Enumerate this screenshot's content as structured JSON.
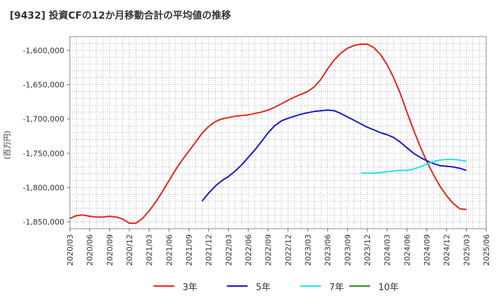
{
  "chart_data": {
    "type": "line",
    "title": "[9432]  投資CFの12か月移動合計の平均値の推移",
    "ylabel": "(百万円)",
    "xlabel": "",
    "ylim": [
      -1860000,
      -1580000
    ],
    "yticks": [
      -1600000,
      -1650000,
      -1700000,
      -1750000,
      -1800000,
      -1850000
    ],
    "ytick_labels": [
      "-1,600,000",
      "-1,650,000",
      "-1,700,000",
      "-1,750,000",
      "-1,800,000",
      "-1,850,000"
    ],
    "x_start": "2020-03",
    "x_end": "2025-06",
    "xtick_labels": [
      "2020/03",
      "2020/06",
      "2020/09",
      "2020/12",
      "2021/03",
      "2021/06",
      "2021/09",
      "2021/12",
      "2022/03",
      "2022/06",
      "2022/09",
      "2022/12",
      "2023/03",
      "2023/06",
      "2023/09",
      "2023/12",
      "2024/03",
      "2024/06",
      "2024/09",
      "2024/12",
      "2025/03",
      "2025/06"
    ],
    "grid": true,
    "legend_position": "bottom",
    "series": [
      {
        "name": "3年",
        "color": "#e8211c",
        "x": [
          "2020-03",
          "2020-04",
          "2020-05",
          "2020-06",
          "2020-07",
          "2020-08",
          "2020-09",
          "2020-10",
          "2020-11",
          "2020-12",
          "2021-01",
          "2021-02",
          "2021-03",
          "2021-04",
          "2021-05",
          "2021-06",
          "2021-07",
          "2021-08",
          "2021-09",
          "2021-10",
          "2021-11",
          "2021-12",
          "2022-01",
          "2022-02",
          "2022-03",
          "2022-04",
          "2022-05",
          "2022-06",
          "2022-07",
          "2022-08",
          "2022-09",
          "2022-10",
          "2022-11",
          "2022-12",
          "2023-01",
          "2023-02",
          "2023-03",
          "2023-04",
          "2023-05",
          "2023-06",
          "2023-07",
          "2023-08",
          "2023-09",
          "2023-10",
          "2023-11",
          "2023-12",
          "2024-01",
          "2024-02",
          "2024-03",
          "2024-04",
          "2024-05",
          "2024-06",
          "2024-07",
          "2024-08",
          "2024-09",
          "2024-10",
          "2024-11",
          "2024-12",
          "2025-01",
          "2025-02",
          "2025-03"
        ],
        "values": [
          -1845000,
          -1841000,
          -1840000,
          -1842000,
          -1843000,
          -1843000,
          -1842000,
          -1843000,
          -1846000,
          -1852000,
          -1852000,
          -1845000,
          -1834000,
          -1821000,
          -1806000,
          -1790000,
          -1774000,
          -1760000,
          -1747000,
          -1734000,
          -1721000,
          -1711000,
          -1704000,
          -1700000,
          -1698000,
          -1696000,
          -1695000,
          -1694000,
          -1692000,
          -1690000,
          -1687000,
          -1683000,
          -1678000,
          -1673000,
          -1668000,
          -1664000,
          -1660000,
          -1653000,
          -1642000,
          -1627000,
          -1614000,
          -1604000,
          -1597000,
          -1593000,
          -1591000,
          -1591000,
          -1596000,
          -1606000,
          -1621000,
          -1640000,
          -1663000,
          -1690000,
          -1716000,
          -1740000,
          -1762000,
          -1781000,
          -1798000,
          -1812000,
          -1823000,
          -1831000,
          -1832000
        ]
      },
      {
        "name": "5年",
        "color": "#1515c8",
        "x": [
          "2021-11",
          "2021-12",
          "2022-01",
          "2022-02",
          "2022-03",
          "2022-04",
          "2022-05",
          "2022-06",
          "2022-07",
          "2022-08",
          "2022-09",
          "2022-10",
          "2022-11",
          "2022-12",
          "2023-01",
          "2023-02",
          "2023-03",
          "2023-04",
          "2023-05",
          "2023-06",
          "2023-07",
          "2023-08",
          "2023-09",
          "2023-10",
          "2023-11",
          "2023-12",
          "2024-01",
          "2024-02",
          "2024-03",
          "2024-04",
          "2024-05",
          "2024-06",
          "2024-07",
          "2024-08",
          "2024-09",
          "2024-10",
          "2024-11",
          "2024-12",
          "2025-01",
          "2025-02",
          "2025-03"
        ],
        "values": [
          -1820000,
          -1808000,
          -1798000,
          -1790000,
          -1784000,
          -1776000,
          -1767000,
          -1756000,
          -1745000,
          -1733000,
          -1720000,
          -1710000,
          -1703000,
          -1699000,
          -1696000,
          -1693000,
          -1691000,
          -1689000,
          -1688000,
          -1687000,
          -1688000,
          -1692000,
          -1697000,
          -1702000,
          -1707000,
          -1712000,
          -1716000,
          -1720000,
          -1723000,
          -1727000,
          -1734000,
          -1742000,
          -1750000,
          -1756000,
          -1761000,
          -1765000,
          -1768000,
          -1769000,
          -1770000,
          -1772000,
          -1775000
        ]
      },
      {
        "name": "7年",
        "color": "#22e0e8",
        "x": [
          "2023-11",
          "2023-12",
          "2024-01",
          "2024-02",
          "2024-03",
          "2024-04",
          "2024-05",
          "2024-06",
          "2024-07",
          "2024-08",
          "2024-09",
          "2024-10",
          "2024-11",
          "2024-12",
          "2025-01",
          "2025-02",
          "2025-03"
        ],
        "values": [
          -1779000,
          -1779000,
          -1779000,
          -1778000,
          -1777000,
          -1776000,
          -1775000,
          -1775000,
          -1773000,
          -1770000,
          -1766000,
          -1762000,
          -1760000,
          -1759000,
          -1759000,
          -1760000,
          -1762000
        ]
      },
      {
        "name": "10年",
        "color": "#2a8a2a",
        "x": [],
        "values": []
      }
    ]
  }
}
